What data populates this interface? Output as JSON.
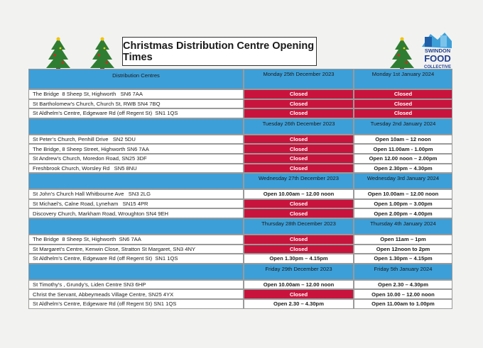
{
  "title": "Christmas Distribution Centre Opening Times",
  "logo": [
    "SWINDON",
    "FOOD",
    "COLLECTIVE"
  ],
  "table": {
    "sections": [
      {
        "label": "Distribution Centres",
        "day1": "Monday 25th December 2023",
        "day2": "Monday 1st January 2024",
        "rows": [
          [
            "The Bridge  8 Sheep St, Highworth   SN6 7AA",
            {
              "text": "Closed",
              "fill": "#c8143c"
            },
            {
              "text": "Closed",
              "fill": "#c8143c"
            }
          ],
          [
            "St Bartholomew’s Church, Church St, RWB SN4 7BQ",
            {
              "text": "Closed",
              "fill": "#c8143c"
            },
            {
              "text": "Closed",
              "fill": "#c8143c"
            }
          ],
          [
            "St Aldhelm’s Centre, Edgeware Rd (off Regent St)  SN1 1QS",
            {
              "text": "Closed",
              "fill": "#c8143c"
            },
            {
              "text": "Closed",
              "fill": "#c8143c"
            }
          ]
        ]
      },
      {
        "day1": "Tuesday 26th December 2023",
        "day2": "Tuesday 2nd January 2024",
        "rows": [
          [
            "St Peter’s Church, Penhill Drive   SN2 5DU",
            {
              "text": "Closed",
              "fill": "#c8143c"
            },
            "Open 10am – 12 noon"
          ],
          [
            "The Bridge, 8 Sheep Street, Highworth SN6 7AA",
            {
              "text": "Closed",
              "fill": "#c8143c"
            },
            "Open 11.00am - 1.00pm"
          ],
          [
            "St Andrew’s Church, Moredon Road, SN25 3DF",
            {
              "text": "Closed",
              "fill": "#c8143c"
            },
            "Open 12.00 noon – 2.00pm"
          ],
          [
            "Freshbrook Church, Worsley Rd   SN5 8NU",
            {
              "text": "Closed",
              "fill": "#c8143c"
            },
            "Open 2.30pm – 4.30pm"
          ]
        ]
      },
      {
        "day1": "Wednesday 27th December 2023",
        "day2": "Wednesday 3rd January 2024",
        "rows": [
          [
            "St John’s Church Hall Whitbourne Ave   SN3 2LG",
            "Open 10.00am – 12.00 noon",
            "Open 10.00am – 12.00 noon"
          ],
          [
            "St Michael’s, Calne Road, Lyneham   SN15 4PR",
            {
              "text": "Closed",
              "fill": "#c8143c"
            },
            "Open 1.00pm – 3.00pm"
          ],
          [
            "Discovery Church, Markham Road, Wroughton SN4 9EH",
            {
              "text": "Closed",
              "fill": "#c8143c"
            },
            "Open 2.00pm – 4.00pm"
          ]
        ]
      },
      {
        "day1": "Thursday 28th December 2023",
        "day2": "Thursday 4th January 2024",
        "rows": [
          [
            "The Bridge  8 Sheep St, Highworth  SN6 7AA",
            {
              "text": "Closed",
              "fill": "#c8143c"
            },
            "Open 11am – 1pm"
          ],
          [
            "St Margaret’s Centre, Kenwin Close, Stratton St Margaret, SN3 4NY",
            {
              "text": "Closed",
              "fill": "#c8143c"
            },
            "Open 12noon to 2pm"
          ],
          [
            "St Aldhelm’s Centre, Edgeware Rd (off Regent St)  SN1 1QS",
            "Open 1.30pm – 4.15pm",
            "Open 1.30pm – 4.15pm"
          ]
        ]
      },
      {
        "day1": "Friday 29th December 2023",
        "day2": "Friday 5th January 2024",
        "rows": [
          [
            "St Timothy’s , Grundy’s, Liden Centre SN3 6HP",
            "Open 10.00am – 12.00 noon",
            "Open 2.30 – 4.30pm"
          ],
          [
            "Christ the Servant, Abbeymeads Village Centre, SN25 4YX",
            {
              "text": "Closed",
              "fill": "#c8143c"
            },
            "Open 10.00 – 12.00 noon"
          ],
          [
            "St Aldhelm’s Centre, Edgeware Rd (off Regent St) SN1 1QS",
            "Open 2.30 – 4.30pm",
            "Open 11.00am to 1.00pm"
          ]
        ]
      }
    ]
  }
}
